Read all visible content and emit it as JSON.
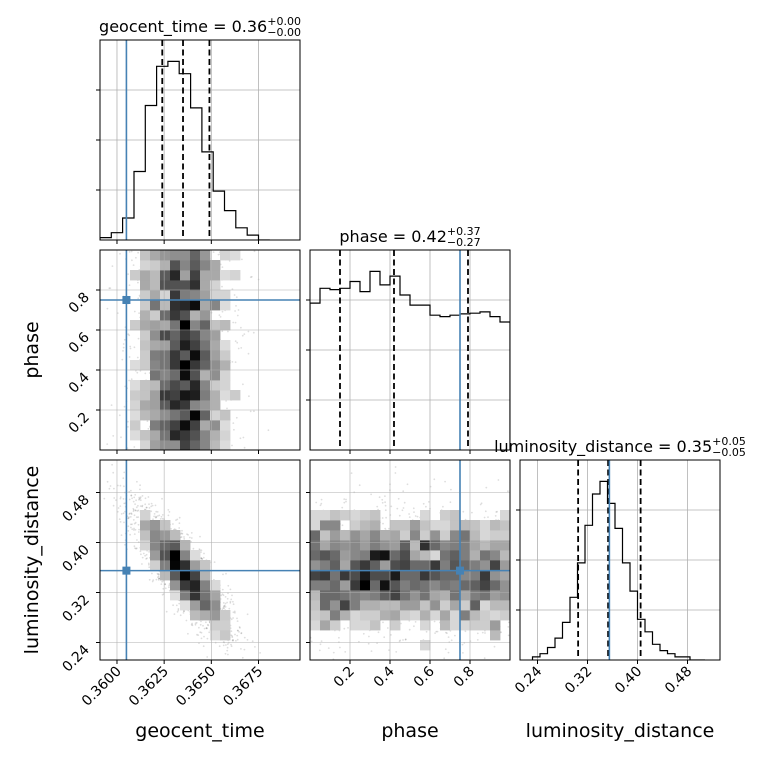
{
  "chart_data": {
    "type": "corner",
    "parameters": [
      "geocent_time",
      "phase",
      "luminosity_distance"
    ],
    "truths": [
      0.3605,
      0.75,
      0.355
    ],
    "truth_color": "#4682b4",
    "axis_labels": {
      "geocent_time": "geocent_time",
      "phase": "phase",
      "luminosity_distance": "luminosity_distance"
    },
    "titles": [
      {
        "param": "geocent_time",
        "text": "geocent_time = 0.36",
        "sup": "+0.00",
        "sub": "−0.00"
      },
      {
        "param": "phase",
        "text": "phase = 0.42",
        "sup": "+0.37",
        "sub": "−0.27"
      },
      {
        "param": "luminosity_distance",
        "text": "luminosity_distance = 0.35",
        "sup": "+0.05",
        "sub": "−0.05"
      }
    ],
    "ranges": {
      "geocent_time": [
        0.3591,
        0.3697
      ],
      "phase": [
        0.0,
        1.0
      ],
      "luminosity_distance": [
        0.212,
        0.532
      ]
    },
    "ticks": {
      "geocent_time": [
        {
          "v": 0.36,
          "label": "0.3600"
        },
        {
          "v": 0.3625,
          "label": "0.3625"
        },
        {
          "v": 0.365,
          "label": "0.3650"
        },
        {
          "v": 0.3675,
          "label": "0.3675"
        }
      ],
      "phase": [
        {
          "v": 0.2,
          "label": "0.2"
        },
        {
          "v": 0.4,
          "label": "0.4"
        },
        {
          "v": 0.6,
          "label": "0.6"
        },
        {
          "v": 0.8,
          "label": "0.8"
        }
      ],
      "luminosity_distance": [
        {
          "v": 0.24,
          "label": "0.24"
        },
        {
          "v": 0.32,
          "label": "0.32"
        },
        {
          "v": 0.4,
          "label": "0.40"
        },
        {
          "v": 0.48,
          "label": "0.48"
        }
      ]
    },
    "quantiles": {
      "geocent_time": [
        0.3624,
        0.3635,
        0.3649
      ],
      "phase": [
        0.15,
        0.42,
        0.79
      ],
      "luminosity_distance": [
        0.305,
        0.353,
        0.405
      ]
    },
    "hist1d": {
      "geocent_time": {
        "edges": [
          0.3591,
          0.3597,
          0.3603,
          0.3609,
          0.3615,
          0.3621,
          0.3627,
          0.3633,
          0.3639,
          0.3645,
          0.3651,
          0.3657,
          0.3663,
          0.3669,
          0.3675,
          0.3681
        ],
        "counts": [
          1,
          3,
          9,
          28,
          55,
          71,
          73,
          68,
          54,
          36,
          20,
          12,
          5,
          2,
          0
        ]
      },
      "phase": {
        "edges": [
          0.0,
          0.05,
          0.1,
          0.15,
          0.2,
          0.25,
          0.3,
          0.35,
          0.4,
          0.45,
          0.5,
          0.55,
          0.6,
          0.65,
          0.7,
          0.75,
          0.8,
          0.85,
          0.9,
          0.95,
          1.0
        ],
        "counts": [
          218,
          240,
          238,
          240,
          250,
          235,
          265,
          245,
          258,
          230,
          215,
          215,
          200,
          198,
          200,
          202,
          203,
          205,
          198,
          190
        ]
      },
      "luminosity_distance": {
        "edges": [
          0.232,
          0.244,
          0.256,
          0.268,
          0.28,
          0.292,
          0.304,
          0.316,
          0.328,
          0.34,
          0.352,
          0.364,
          0.376,
          0.388,
          0.4,
          0.412,
          0.424,
          0.436,
          0.448,
          0.46,
          0.472,
          0.484,
          0.496,
          0.508
        ],
        "counts": [
          1,
          2,
          4,
          7,
          12,
          20,
          31,
          43,
          53,
          57,
          50,
          42,
          31,
          22,
          13,
          9,
          5,
          3,
          2,
          1,
          1,
          0,
          0
        ]
      }
    },
    "posterior_2d": {
      "phase_vs_geocent_time": {
        "correlation": 0.0
      },
      "luminosity_distance_vs_geocent_time": {
        "correlation": -0.85
      },
      "luminosity_distance_vs_phase": {
        "correlation": 0.0
      }
    }
  }
}
